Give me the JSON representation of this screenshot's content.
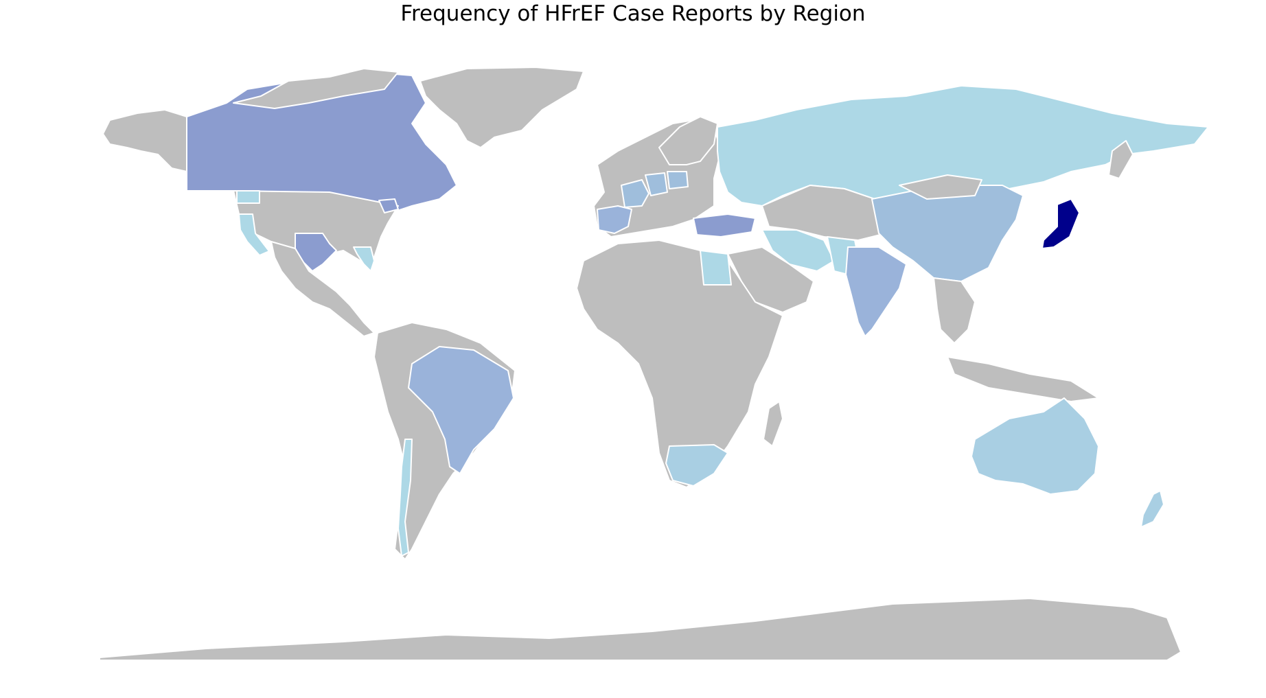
{
  "title": "Frequency of HFrEF Case Reports by Region",
  "colors": {
    "no_data": "#bebebe",
    "level_1": "#add8e6",
    "level_1b": "#a9cfe3",
    "level_2": "#9fbedc",
    "level_2b": "#9ab3da",
    "level_3": "#8b9ccf",
    "level_max": "#00008b",
    "border": "#ffffff",
    "background": "#ffffff"
  },
  "regions": [
    {
      "name": "Japan",
      "level": "level_max"
    },
    {
      "name": "Canada",
      "level": "level_3"
    },
    {
      "name": "Texas",
      "level": "level_3"
    },
    {
      "name": "New York",
      "level": "level_3"
    },
    {
      "name": "Turkey",
      "level": "level_3"
    },
    {
      "name": "India",
      "level": "level_2b"
    },
    {
      "name": "Brazil",
      "level": "level_2b"
    },
    {
      "name": "Spain",
      "level": "level_2b"
    },
    {
      "name": "China",
      "level": "level_2"
    },
    {
      "name": "France",
      "level": "level_2"
    },
    {
      "name": "Germany",
      "level": "level_2"
    },
    {
      "name": "Poland",
      "level": "level_2"
    },
    {
      "name": "Australia",
      "level": "level_1b"
    },
    {
      "name": "New Zealand",
      "level": "level_1b"
    },
    {
      "name": "South Africa",
      "level": "level_1b"
    },
    {
      "name": "Russia",
      "level": "level_1"
    },
    {
      "name": "Iran",
      "level": "level_1"
    },
    {
      "name": "Pakistan",
      "level": "level_1"
    },
    {
      "name": "Egypt",
      "level": "level_1"
    },
    {
      "name": "Chile",
      "level": "level_1"
    },
    {
      "name": "California",
      "level": "level_1"
    },
    {
      "name": "Washington",
      "level": "level_1"
    },
    {
      "name": "Florida",
      "level": "level_1"
    }
  ]
}
